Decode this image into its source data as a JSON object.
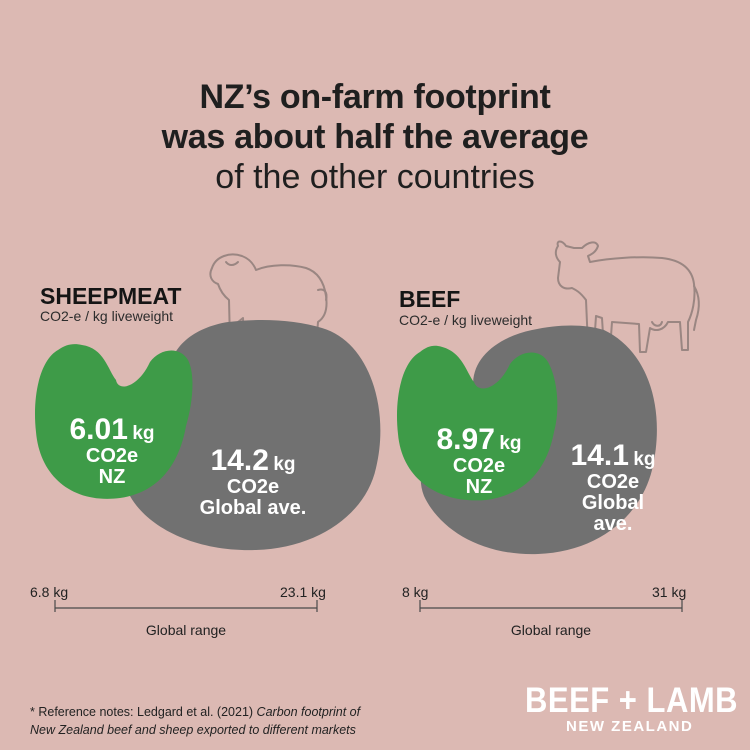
{
  "title": {
    "line1": "NZ’s on-farm footprint",
    "line2": "was about half the average",
    "line3": "of the other countries"
  },
  "colors": {
    "background": "#dcb9b3",
    "nz": "#3e9b48",
    "global": "#717171",
    "animal_outline": "#9a8682"
  },
  "chart_data": [
    {
      "type": "comparison",
      "title": "SHEEPMEAT",
      "subtitle": "CO2-e / kg liveweight",
      "icon": "sheep-icon",
      "nz": {
        "value": 6.01,
        "value_text": "6.01",
        "unit": "kg",
        "unit_line": "CO2e",
        "label": "NZ"
      },
      "global": {
        "value": 14.2,
        "value_text": "14.2",
        "unit": "kg",
        "unit_line": "CO2e",
        "label": "Global ave."
      },
      "range": {
        "min_label": "6.8 kg",
        "max_label": "23.1 kg",
        "min": 6.8,
        "max": 23.1,
        "label": "Global range"
      }
    },
    {
      "type": "comparison",
      "title": "BEEF",
      "subtitle": "CO2-e / kg liveweight",
      "icon": "cow-icon",
      "nz": {
        "value": 8.97,
        "value_text": "8.97",
        "unit": "kg",
        "unit_line": "CO2e",
        "label": "NZ"
      },
      "global": {
        "value": 14.1,
        "value_text": "14.1",
        "unit": "kg",
        "unit_line": "CO2e",
        "label_line1": "Global",
        "label_line2": "ave."
      },
      "range": {
        "min_label": "8 kg",
        "max_label": "31 kg",
        "min": 8,
        "max": 31,
        "label": "Global range"
      }
    }
  ],
  "reference": {
    "prefix": "* Reference notes: Ledgard et al. (2021) ",
    "italic_line1": "Carbon footprint of",
    "italic_line2": "New Zealand beef and sheep exported to different markets"
  },
  "logo": {
    "line1": "BEEF + LAMB",
    "line2": "NEW ZEALAND"
  }
}
